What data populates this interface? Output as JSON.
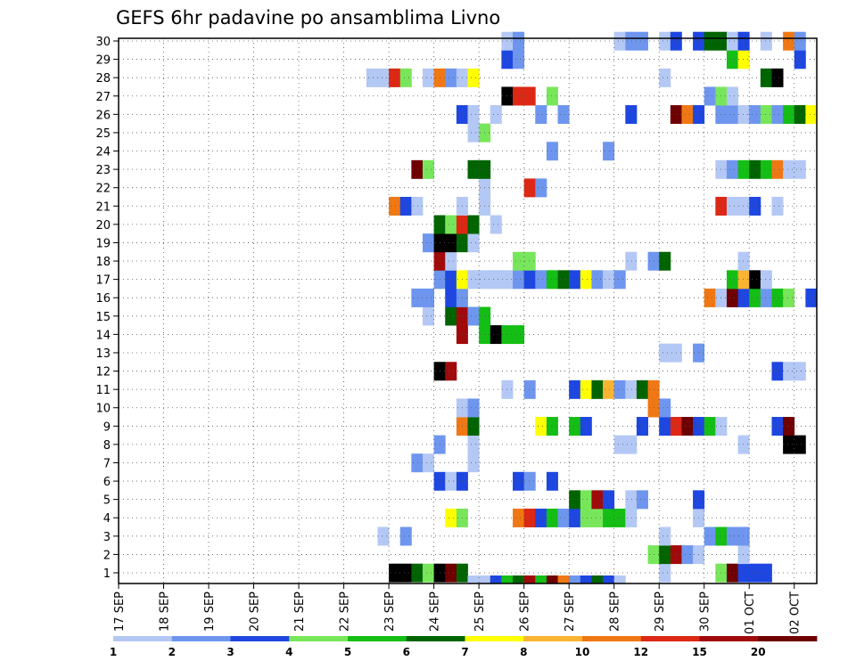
{
  "chart_data": {
    "type": "heatmap",
    "title": "GEFS 6hr padavine po ansamblima Livno",
    "xlabel": "",
    "ylabel": "",
    "x_ticks": [
      "17 SEP",
      "18 SEP",
      "19 SEP",
      "20 SEP",
      "21 SEP",
      "22 SEP",
      "23 SEP",
      "24 SEP",
      "25 SEP",
      "26 SEP",
      "27 SEP",
      "28 SEP",
      "29 SEP",
      "30 SEP",
      "01 OCT",
      "02 OCT"
    ],
    "y_ticks": [
      "1",
      "2",
      "3",
      "4",
      "5",
      "6",
      "7",
      "8",
      "9",
      "10",
      "11",
      "12",
      "13",
      "14",
      "15",
      "16",
      "17",
      "18",
      "19",
      "20",
      "21",
      "22",
      "23",
      "24",
      "25",
      "26",
      "27",
      "28",
      "29",
      "30"
    ],
    "grid": true,
    "steps_per_day": 4,
    "legend": {
      "placement": "bottom",
      "labels": [
        "1",
        "2",
        "3",
        "4",
        "5",
        "6",
        "7",
        "8",
        "10",
        "12",
        "15",
        "20"
      ],
      "colors": [
        "#b4c8f5",
        "#6e96ee",
        "#1e46e0",
        "#78e65a",
        "#14be14",
        "#006400",
        "#ffff00",
        "#fab432",
        "#f07814",
        "#dc2814",
        "#a00a0a",
        "#6e0000"
      ]
    },
    "rows": [
      {
        "member": 1,
        "cells": [
          [
            23.0,
            13
          ],
          [
            23.25,
            13
          ],
          [
            23.5,
            6
          ],
          [
            23.75,
            4
          ],
          [
            24.0,
            13
          ],
          [
            24.25,
            12
          ],
          [
            24.5,
            6
          ],
          [
            29.0,
            1
          ],
          [
            30.25,
            4
          ],
          [
            30.5,
            12
          ],
          [
            30.75,
            3
          ],
          [
            31.0,
            3
          ],
          [
            31.25,
            3
          ]
        ]
      },
      {
        "member": 2,
        "cells": [
          [
            28.75,
            4
          ],
          [
            29.0,
            6
          ],
          [
            29.25,
            11
          ],
          [
            29.5,
            2
          ],
          [
            29.75,
            1
          ],
          [
            30.75,
            1
          ]
        ]
      },
      {
        "member": 3,
        "cells": [
          [
            22.75,
            1
          ],
          [
            23.25,
            2
          ],
          [
            29.0,
            1
          ],
          [
            30.0,
            2
          ],
          [
            30.25,
            5
          ],
          [
            30.5,
            2
          ],
          [
            30.75,
            2
          ]
        ]
      },
      {
        "member": 4,
        "cells": [
          [
            24.25,
            7
          ],
          [
            24.5,
            4
          ],
          [
            25.75,
            9
          ],
          [
            26.0,
            10
          ],
          [
            26.25,
            3
          ],
          [
            26.5,
            5
          ],
          [
            26.75,
            2
          ],
          [
            27.0,
            3
          ],
          [
            27.25,
            4
          ],
          [
            27.5,
            4
          ],
          [
            27.75,
            5
          ],
          [
            28.0,
            5
          ],
          [
            28.25,
            1
          ],
          [
            29.75,
            1
          ]
        ]
      },
      {
        "member": 5,
        "cells": [
          [
            27.0,
            6
          ],
          [
            27.25,
            4
          ],
          [
            27.5,
            11
          ],
          [
            27.75,
            3
          ],
          [
            28.25,
            1
          ],
          [
            28.5,
            2
          ],
          [
            29.75,
            3
          ]
        ]
      },
      {
        "member": 6,
        "cells": [
          [
            24.0,
            3
          ],
          [
            24.25,
            1
          ],
          [
            24.5,
            3
          ],
          [
            25.75,
            3
          ],
          [
            26.0,
            2
          ],
          [
            26.5,
            3
          ]
        ]
      },
      {
        "member": 7,
        "cells": [
          [
            23.5,
            2
          ],
          [
            23.75,
            1
          ],
          [
            24.75,
            1
          ]
        ]
      },
      {
        "member": 8,
        "cells": [
          [
            24.0,
            2
          ],
          [
            24.75,
            1
          ],
          [
            28.0,
            1
          ],
          [
            28.25,
            1
          ],
          [
            30.75,
            1
          ],
          [
            31.75,
            13
          ],
          [
            32.0,
            13
          ]
        ]
      },
      {
        "member": 9,
        "cells": [
          [
            24.5,
            9
          ],
          [
            24.75,
            6
          ],
          [
            26.25,
            7
          ],
          [
            26.5,
            5
          ],
          [
            27.0,
            5
          ],
          [
            27.25,
            3
          ],
          [
            28.5,
            3
          ],
          [
            29.0,
            3
          ],
          [
            29.25,
            10
          ],
          [
            29.5,
            12
          ],
          [
            29.75,
            3
          ],
          [
            30.0,
            5
          ],
          [
            30.25,
            1
          ],
          [
            31.5,
            3
          ],
          [
            31.75,
            12
          ]
        ]
      },
      {
        "member": 10,
        "cells": [
          [
            24.5,
            1
          ],
          [
            24.75,
            2
          ],
          [
            28.75,
            9
          ],
          [
            29.0,
            2
          ]
        ]
      },
      {
        "member": 11,
        "cells": [
          [
            25.5,
            1
          ],
          [
            26.0,
            2
          ],
          [
            27.0,
            3
          ],
          [
            27.25,
            7
          ],
          [
            27.5,
            6
          ],
          [
            27.75,
            8
          ],
          [
            28.0,
            2
          ],
          [
            28.25,
            1
          ],
          [
            28.5,
            6
          ],
          [
            28.75,
            9
          ]
        ]
      },
      {
        "member": 12,
        "cells": [
          [
            24.0,
            13
          ],
          [
            24.25,
            11
          ],
          [
            31.5,
            3
          ],
          [
            31.75,
            1
          ],
          [
            32.0,
            1
          ]
        ]
      },
      {
        "member": 13,
        "cells": [
          [
            29.0,
            1
          ],
          [
            29.25,
            1
          ],
          [
            29.75,
            2
          ]
        ]
      },
      {
        "member": 14,
        "cells": [
          [
            24.5,
            11
          ],
          [
            25.0,
            5
          ],
          [
            25.25,
            13
          ],
          [
            25.5,
            5
          ],
          [
            25.75,
            5
          ]
        ]
      },
      {
        "member": 15,
        "cells": [
          [
            23.75,
            1
          ],
          [
            24.25,
            6
          ],
          [
            24.5,
            11
          ],
          [
            24.75,
            2
          ],
          [
            25.0,
            5
          ]
        ]
      },
      {
        "member": 16,
        "cells": [
          [
            23.5,
            2
          ],
          [
            23.75,
            2
          ],
          [
            24.25,
            3
          ],
          [
            24.5,
            2
          ],
          [
            30.0,
            9
          ],
          [
            30.25,
            1
          ],
          [
            30.5,
            12
          ],
          [
            30.75,
            3
          ],
          [
            31.0,
            5
          ],
          [
            31.25,
            2
          ],
          [
            31.5,
            5
          ],
          [
            31.75,
            4
          ],
          [
            32.25,
            3
          ]
        ]
      },
      {
        "member": 17,
        "cells": [
          [
            24.0,
            2
          ],
          [
            24.25,
            3
          ],
          [
            24.5,
            7
          ],
          [
            24.75,
            1
          ],
          [
            25.0,
            1
          ],
          [
            25.25,
            1
          ],
          [
            25.5,
            1
          ],
          [
            25.75,
            2
          ],
          [
            26.0,
            3
          ],
          [
            26.25,
            2
          ],
          [
            26.5,
            5
          ],
          [
            26.75,
            6
          ],
          [
            27.0,
            3
          ],
          [
            27.25,
            7
          ],
          [
            27.5,
            2
          ],
          [
            27.75,
            1
          ],
          [
            28.0,
            2
          ],
          [
            30.5,
            5
          ],
          [
            30.75,
            8
          ],
          [
            31.0,
            13
          ],
          [
            31.25,
            1
          ]
        ]
      },
      {
        "member": 18,
        "cells": [
          [
            24.0,
            11
          ],
          [
            24.25,
            1
          ],
          [
            25.75,
            4
          ],
          [
            26.0,
            4
          ],
          [
            28.25,
            1
          ],
          [
            28.75,
            2
          ],
          [
            29.0,
            6
          ],
          [
            30.75,
            1
          ]
        ]
      },
      {
        "member": 19,
        "cells": [
          [
            23.75,
            2
          ],
          [
            24.0,
            13
          ],
          [
            24.25,
            13
          ],
          [
            24.5,
            6
          ],
          [
            24.75,
            1
          ]
        ]
      },
      {
        "member": 20,
        "cells": [
          [
            24.0,
            6
          ],
          [
            24.25,
            4
          ],
          [
            24.5,
            10
          ],
          [
            24.75,
            6
          ],
          [
            25.25,
            1
          ]
        ]
      },
      {
        "member": 21,
        "cells": [
          [
            23.0,
            9
          ],
          [
            23.25,
            3
          ],
          [
            23.5,
            1
          ],
          [
            24.5,
            1
          ],
          [
            25.0,
            1
          ],
          [
            30.25,
            10
          ],
          [
            30.5,
            1
          ],
          [
            30.75,
            1
          ],
          [
            31.0,
            3
          ],
          [
            31.5,
            1
          ]
        ]
      },
      {
        "member": 22,
        "cells": [
          [
            25.0,
            1
          ],
          [
            26.0,
            10
          ],
          [
            26.25,
            2
          ]
        ]
      },
      {
        "member": 23,
        "cells": [
          [
            23.5,
            12
          ],
          [
            23.75,
            4
          ],
          [
            24.75,
            6
          ],
          [
            25.0,
            6
          ],
          [
            30.25,
            1
          ],
          [
            30.5,
            2
          ],
          [
            30.75,
            5
          ],
          [
            31.0,
            6
          ],
          [
            31.25,
            5
          ],
          [
            31.5,
            9
          ],
          [
            31.75,
            1
          ],
          [
            32.0,
            1
          ]
        ]
      },
      {
        "member": 24,
        "cells": [
          [
            26.5,
            2
          ],
          [
            27.75,
            2
          ]
        ]
      },
      {
        "member": 25,
        "cells": [
          [
            24.75,
            1
          ],
          [
            25.0,
            4
          ]
        ]
      },
      {
        "member": 26,
        "cells": [
          [
            24.5,
            3
          ],
          [
            24.75,
            1
          ],
          [
            25.25,
            1
          ],
          [
            26.25,
            2
          ],
          [
            26.75,
            2
          ],
          [
            28.25,
            3
          ],
          [
            29.25,
            12
          ],
          [
            29.5,
            9
          ],
          [
            29.75,
            3
          ],
          [
            30.25,
            2
          ],
          [
            30.5,
            2
          ],
          [
            30.75,
            1
          ],
          [
            31.0,
            2
          ],
          [
            31.25,
            4
          ],
          [
            31.5,
            2
          ],
          [
            31.75,
            5
          ],
          [
            32.0,
            6
          ],
          [
            32.25,
            7
          ]
        ]
      },
      {
        "member": 27,
        "cells": [
          [
            25.5,
            13
          ],
          [
            25.75,
            10
          ],
          [
            26.0,
            10
          ],
          [
            26.5,
            4
          ],
          [
            30.0,
            2
          ],
          [
            30.25,
            4
          ],
          [
            30.5,
            1
          ]
        ]
      },
      {
        "member": 28,
        "cells": [
          [
            22.5,
            1
          ],
          [
            22.75,
            1
          ],
          [
            23.0,
            10
          ],
          [
            23.25,
            4
          ],
          [
            23.75,
            1
          ],
          [
            24.0,
            9
          ],
          [
            24.25,
            2
          ],
          [
            24.5,
            1
          ],
          [
            24.75,
            7
          ],
          [
            29.0,
            1
          ],
          [
            31.25,
            6
          ],
          [
            31.5,
            13
          ]
        ]
      },
      {
        "member": 29,
        "cells": [
          [
            25.5,
            3
          ],
          [
            25.75,
            2
          ],
          [
            30.5,
            5
          ],
          [
            30.75,
            7
          ],
          [
            32.0,
            3
          ]
        ]
      },
      {
        "member": 30,
        "cells": [
          [
            25.5,
            1
          ],
          [
            25.75,
            2
          ],
          [
            28.0,
            1
          ],
          [
            28.25,
            2
          ],
          [
            28.5,
            2
          ],
          [
            29.0,
            1
          ],
          [
            29.25,
            3
          ],
          [
            29.75,
            3
          ],
          [
            30.0,
            6
          ],
          [
            30.25,
            6
          ],
          [
            30.5,
            1
          ],
          [
            30.75,
            3
          ],
          [
            31.25,
            1
          ],
          [
            31.75,
            9
          ],
          [
            32.0,
            2
          ]
        ]
      }
    ],
    "footer_strip": [
      [
        24.75,
        1
      ],
      [
        25.0,
        1
      ],
      [
        25.25,
        3
      ],
      [
        25.5,
        5
      ],
      [
        25.75,
        6
      ],
      [
        26.0,
        11
      ],
      [
        26.25,
        5
      ],
      [
        26.5,
        12
      ],
      [
        26.75,
        9
      ],
      [
        27.0,
        2
      ],
      [
        27.25,
        3
      ],
      [
        27.5,
        6
      ],
      [
        27.75,
        3
      ],
      [
        28.0,
        1
      ]
    ]
  }
}
